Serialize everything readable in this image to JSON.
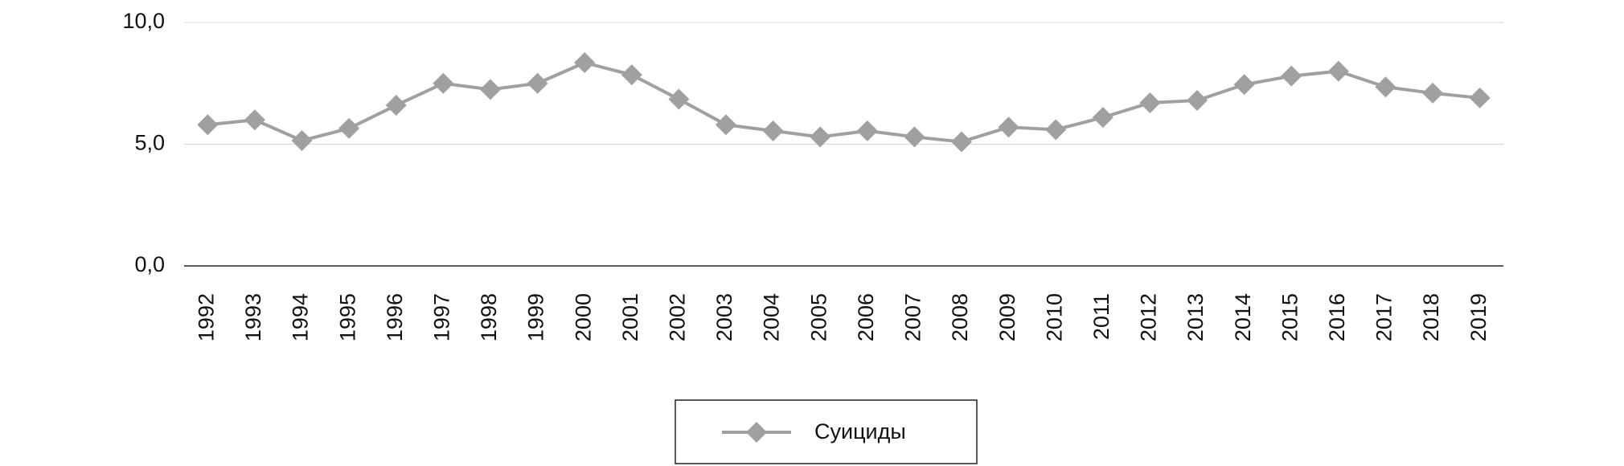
{
  "chart_data": {
    "type": "line",
    "categories": [
      "1992",
      "1993",
      "1994",
      "1995",
      "1996",
      "1997",
      "1998",
      "1999",
      "2000",
      "2001",
      "2002",
      "2003",
      "2004",
      "2005",
      "2006",
      "2007",
      "2008",
      "2009",
      "2010",
      "2011",
      "2012",
      "2013",
      "2014",
      "2015",
      "2016",
      "2017",
      "2018",
      "2019"
    ],
    "series": [
      {
        "name": "Суициды",
        "color": "#a0a0a0",
        "values": [
          5.8,
          6.0,
          5.15,
          5.65,
          6.6,
          7.5,
          7.25,
          7.5,
          8.35,
          7.85,
          6.85,
          5.8,
          5.55,
          5.3,
          5.55,
          5.3,
          5.1,
          5.7,
          5.6,
          6.1,
          6.7,
          6.8,
          7.45,
          7.8,
          8.0,
          7.35,
          7.1,
          6.9
        ]
      }
    ],
    "ylim": [
      0,
      10
    ],
    "yticks": [
      {
        "value": 0,
        "label": "0,0"
      },
      {
        "value": 5,
        "label": "5,0"
      },
      {
        "value": 10,
        "label": "10,0"
      }
    ],
    "grid": true
  }
}
